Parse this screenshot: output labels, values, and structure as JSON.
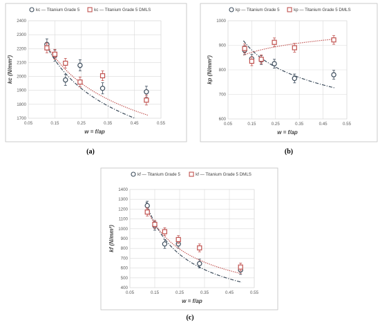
{
  "colors": {
    "ti5": "#3a4a5a",
    "dmls": "#c0504d",
    "grid": "#d9d9d9",
    "border": "#bfbfbf"
  },
  "chart_data": [
    {
      "type": "scatter",
      "caption": "(a)",
      "xlabel": "w = f/ap",
      "ylabel": "kc (N/mm²)",
      "xlim": [
        0.05,
        0.55
      ],
      "ylim": [
        1700,
        2400
      ],
      "xticks": [
        "0.05",
        "0.15",
        "0.25",
        "0.35",
        "0.45",
        "0.55"
      ],
      "yticks": [
        "1700",
        "1800",
        "1900",
        "2000",
        "2100",
        "2200",
        "2300",
        "2400"
      ],
      "grid": true,
      "legend": "top",
      "series": [
        {
          "name": "kc — Titanium Grade 5",
          "marker": "circle",
          "trend": "dash-dot",
          "x": [
            0.12,
            0.15,
            0.19,
            0.245,
            0.33,
            0.495
          ],
          "y": [
            2230,
            2150,
            1975,
            2080,
            1915,
            1890
          ],
          "err": [
            40,
            40,
            40,
            40,
            40,
            40
          ],
          "trend_coeff": [
            1450,
            -0.2
          ]
        },
        {
          "name": "kc — Titanium Grade 5 DMLS",
          "marker": "square",
          "trend": "dotted",
          "x": [
            0.12,
            0.15,
            0.19,
            0.245,
            0.33,
            0.495
          ],
          "y": [
            2205,
            2160,
            2095,
            1960,
            2005,
            1830
          ],
          "err": [
            35,
            35,
            35,
            35,
            35,
            35
          ],
          "trend_coeff": [
            1520,
            -0.18
          ]
        }
      ]
    },
    {
      "type": "scatter",
      "caption": "(b)",
      "xlabel": "w = f/ap",
      "ylabel": "kp (N/mm²)",
      "xlim": [
        0.05,
        0.55
      ],
      "ylim": [
        600,
        1000
      ],
      "xticks": [
        "0.05",
        "0.15",
        "0.25",
        "0.35",
        "0.45",
        "0.55"
      ],
      "yticks": [
        "600",
        "700",
        "800",
        "900",
        "1000"
      ],
      "grid": true,
      "legend": "top",
      "series": [
        {
          "name": "kp — Titanium Grade 5",
          "marker": "circle",
          "trend": "dash-dot",
          "x": [
            0.12,
            0.15,
            0.19,
            0.245,
            0.33,
            0.495
          ],
          "y": [
            880,
            845,
            840,
            825,
            765,
            780
          ],
          "err": [
            18,
            18,
            18,
            18,
            18,
            18
          ],
          "trend_coeff": [
            650,
            -0.16
          ]
        },
        {
          "name": "kp — Titanium Grade 5 DMLS",
          "marker": "square",
          "trend": "dotted",
          "x": [
            0.12,
            0.15,
            0.19,
            0.245,
            0.33,
            0.495
          ],
          "y": [
            887,
            835,
            843,
            912,
            890,
            922
          ],
          "err": [
            18,
            18,
            18,
            18,
            18,
            18
          ],
          "trend_coeff": [
            958,
            0.05
          ]
        }
      ]
    },
    {
      "type": "scatter",
      "caption": "(c)",
      "xlabel": "w = f/ap",
      "ylabel": "kf (N/mm²)",
      "xlim": [
        0.05,
        0.55
      ],
      "ylim": [
        400,
        1400
      ],
      "xticks": [
        "0.05",
        "0.15",
        "0.25",
        "0.35",
        "0.45",
        "0.55"
      ],
      "yticks": [
        "400",
        "500",
        "600",
        "700",
        "800",
        "900",
        "1000",
        "1100",
        "1200",
        "1300",
        "1400"
      ],
      "grid": true,
      "legend": "top",
      "series": [
        {
          "name": "kf — Titanium Grade 5",
          "marker": "circle",
          "trend": "dash-dot",
          "x": [
            0.12,
            0.15,
            0.19,
            0.245,
            0.33,
            0.495
          ],
          "y": [
            1235,
            1030,
            845,
            845,
            645,
            580
          ],
          "err": [
            45,
            45,
            45,
            45,
            45,
            45
          ],
          "trend_coeff": [
            280,
            -0.7
          ]
        },
        {
          "name": "kf — Titanium Grade 5 DMLS",
          "marker": "square",
          "trend": "dotted",
          "x": [
            0.12,
            0.15,
            0.19,
            0.245,
            0.33,
            0.495
          ],
          "y": [
            1170,
            1045,
            970,
            890,
            805,
            610
          ],
          "err": [
            40,
            40,
            40,
            40,
            40,
            40
          ],
          "trend_coeff": [
            370,
            -0.55
          ]
        }
      ]
    }
  ]
}
